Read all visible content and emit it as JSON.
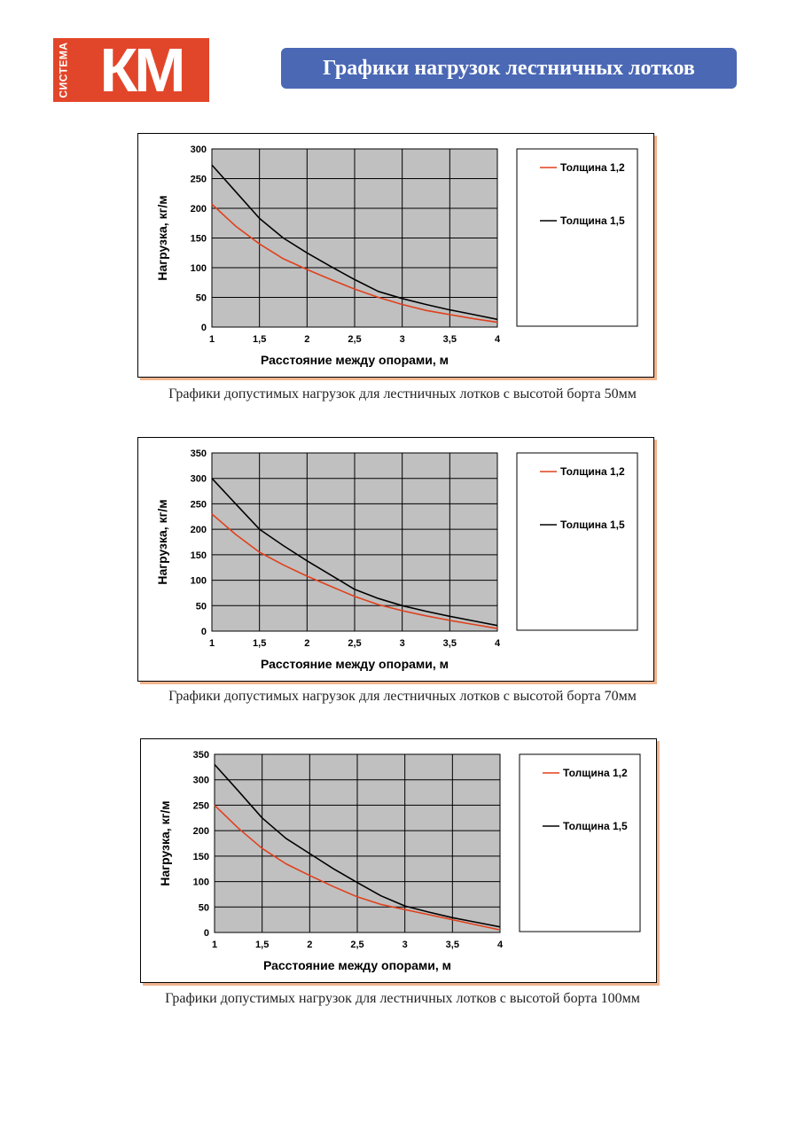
{
  "header": {
    "logo_side_text": "СИСТЕМА",
    "logo_main_text": "КМ",
    "title": "Графики нагрузок лестничных лотков"
  },
  "colors": {
    "logo_bg": "#e2462a",
    "title_bg": "#4b68b5",
    "plot_bg": "#c0c0c0",
    "series_12": "#e0401c",
    "series_15": "#000000",
    "frame_shadow": "#f0b48e"
  },
  "chart_data": [
    {
      "type": "line",
      "caption": "Графики допустимых нагрузок для лестничных лотков с высотой борта 50мм",
      "xlabel": "Расстояние между опорами, м",
      "ylabel": "Нагрузка, кг/м",
      "xlim": [
        1,
        4
      ],
      "ylim": [
        0,
        300
      ],
      "x_ticks": [
        "1",
        "1,5",
        "2",
        "2,5",
        "3",
        "3,5",
        "4"
      ],
      "y_ticks": [
        "0",
        "50",
        "100",
        "150",
        "200",
        "250",
        "300"
      ],
      "grid": true,
      "legend_position": "right",
      "x": [
        1,
        1.25,
        1.5,
        1.75,
        2,
        2.25,
        2.5,
        2.75,
        3,
        3.25,
        3.5,
        3.75,
        4
      ],
      "series": [
        {
          "name": "Толщина 1,2",
          "color": "#e0401c",
          "values": [
            207,
            170,
            140,
            115,
            97,
            80,
            64,
            50,
            38,
            28,
            21,
            14,
            8
          ]
        },
        {
          "name": "Толщина 1,5",
          "color": "#000000",
          "values": [
            273,
            228,
            183,
            150,
            125,
            102,
            80,
            60,
            48,
            38,
            29,
            21,
            13
          ]
        }
      ]
    },
    {
      "type": "line",
      "caption": "Графики допустимых нагрузок для лестничных лотков с высотой борта 70мм",
      "xlabel": "Расстояние между опорами, м",
      "ylabel": "Нагрузка, кг/м",
      "xlim": [
        1,
        4
      ],
      "ylim": [
        0,
        350
      ],
      "x_ticks": [
        "1",
        "1,5",
        "2",
        "2,5",
        "3",
        "3,5",
        "4"
      ],
      "y_ticks": [
        "0",
        "50",
        "100",
        "150",
        "200",
        "250",
        "300",
        "350"
      ],
      "grid": true,
      "legend_position": "right",
      "x": [
        1,
        1.25,
        1.5,
        1.75,
        2,
        2.25,
        2.5,
        2.75,
        3,
        3.25,
        3.5,
        3.75,
        4
      ],
      "series": [
        {
          "name": "Толщина 1,2",
          "color": "#e0401c",
          "values": [
            230,
            190,
            155,
            130,
            108,
            88,
            68,
            52,
            40,
            30,
            21,
            13,
            5
          ]
        },
        {
          "name": "Толщина 1,5",
          "color": "#000000",
          "values": [
            300,
            250,
            200,
            168,
            138,
            110,
            82,
            64,
            50,
            39,
            29,
            20,
            11
          ]
        }
      ]
    },
    {
      "type": "line",
      "caption": "Графики допустимых нагрузок для лестничных лотков с высотой борта 100мм",
      "xlabel": "Расстояние между опорами, м",
      "ylabel": "Нагрузка, кг/м",
      "xlim": [
        1,
        4
      ],
      "ylim": [
        0,
        350
      ],
      "x_ticks": [
        "1",
        "1,5",
        "2",
        "2,5",
        "3",
        "3,5",
        "4"
      ],
      "y_ticks": [
        "0",
        "50",
        "100",
        "150",
        "200",
        "250",
        "300",
        "350"
      ],
      "grid": true,
      "legend_position": "right",
      "x": [
        1,
        1.25,
        1.5,
        1.75,
        2,
        2.25,
        2.5,
        2.75,
        3,
        3.25,
        3.5,
        3.75,
        4
      ],
      "series": [
        {
          "name": "Толщина 1,2",
          "color": "#e0401c",
          "values": [
            250,
            205,
            165,
            135,
            112,
            90,
            70,
            55,
            45,
            35,
            25,
            15,
            5
          ]
        },
        {
          "name": "Толщина 1,5",
          "color": "#000000",
          "values": [
            330,
            278,
            225,
            185,
            155,
            125,
            98,
            72,
            52,
            40,
            29,
            20,
            11
          ]
        }
      ]
    }
  ]
}
